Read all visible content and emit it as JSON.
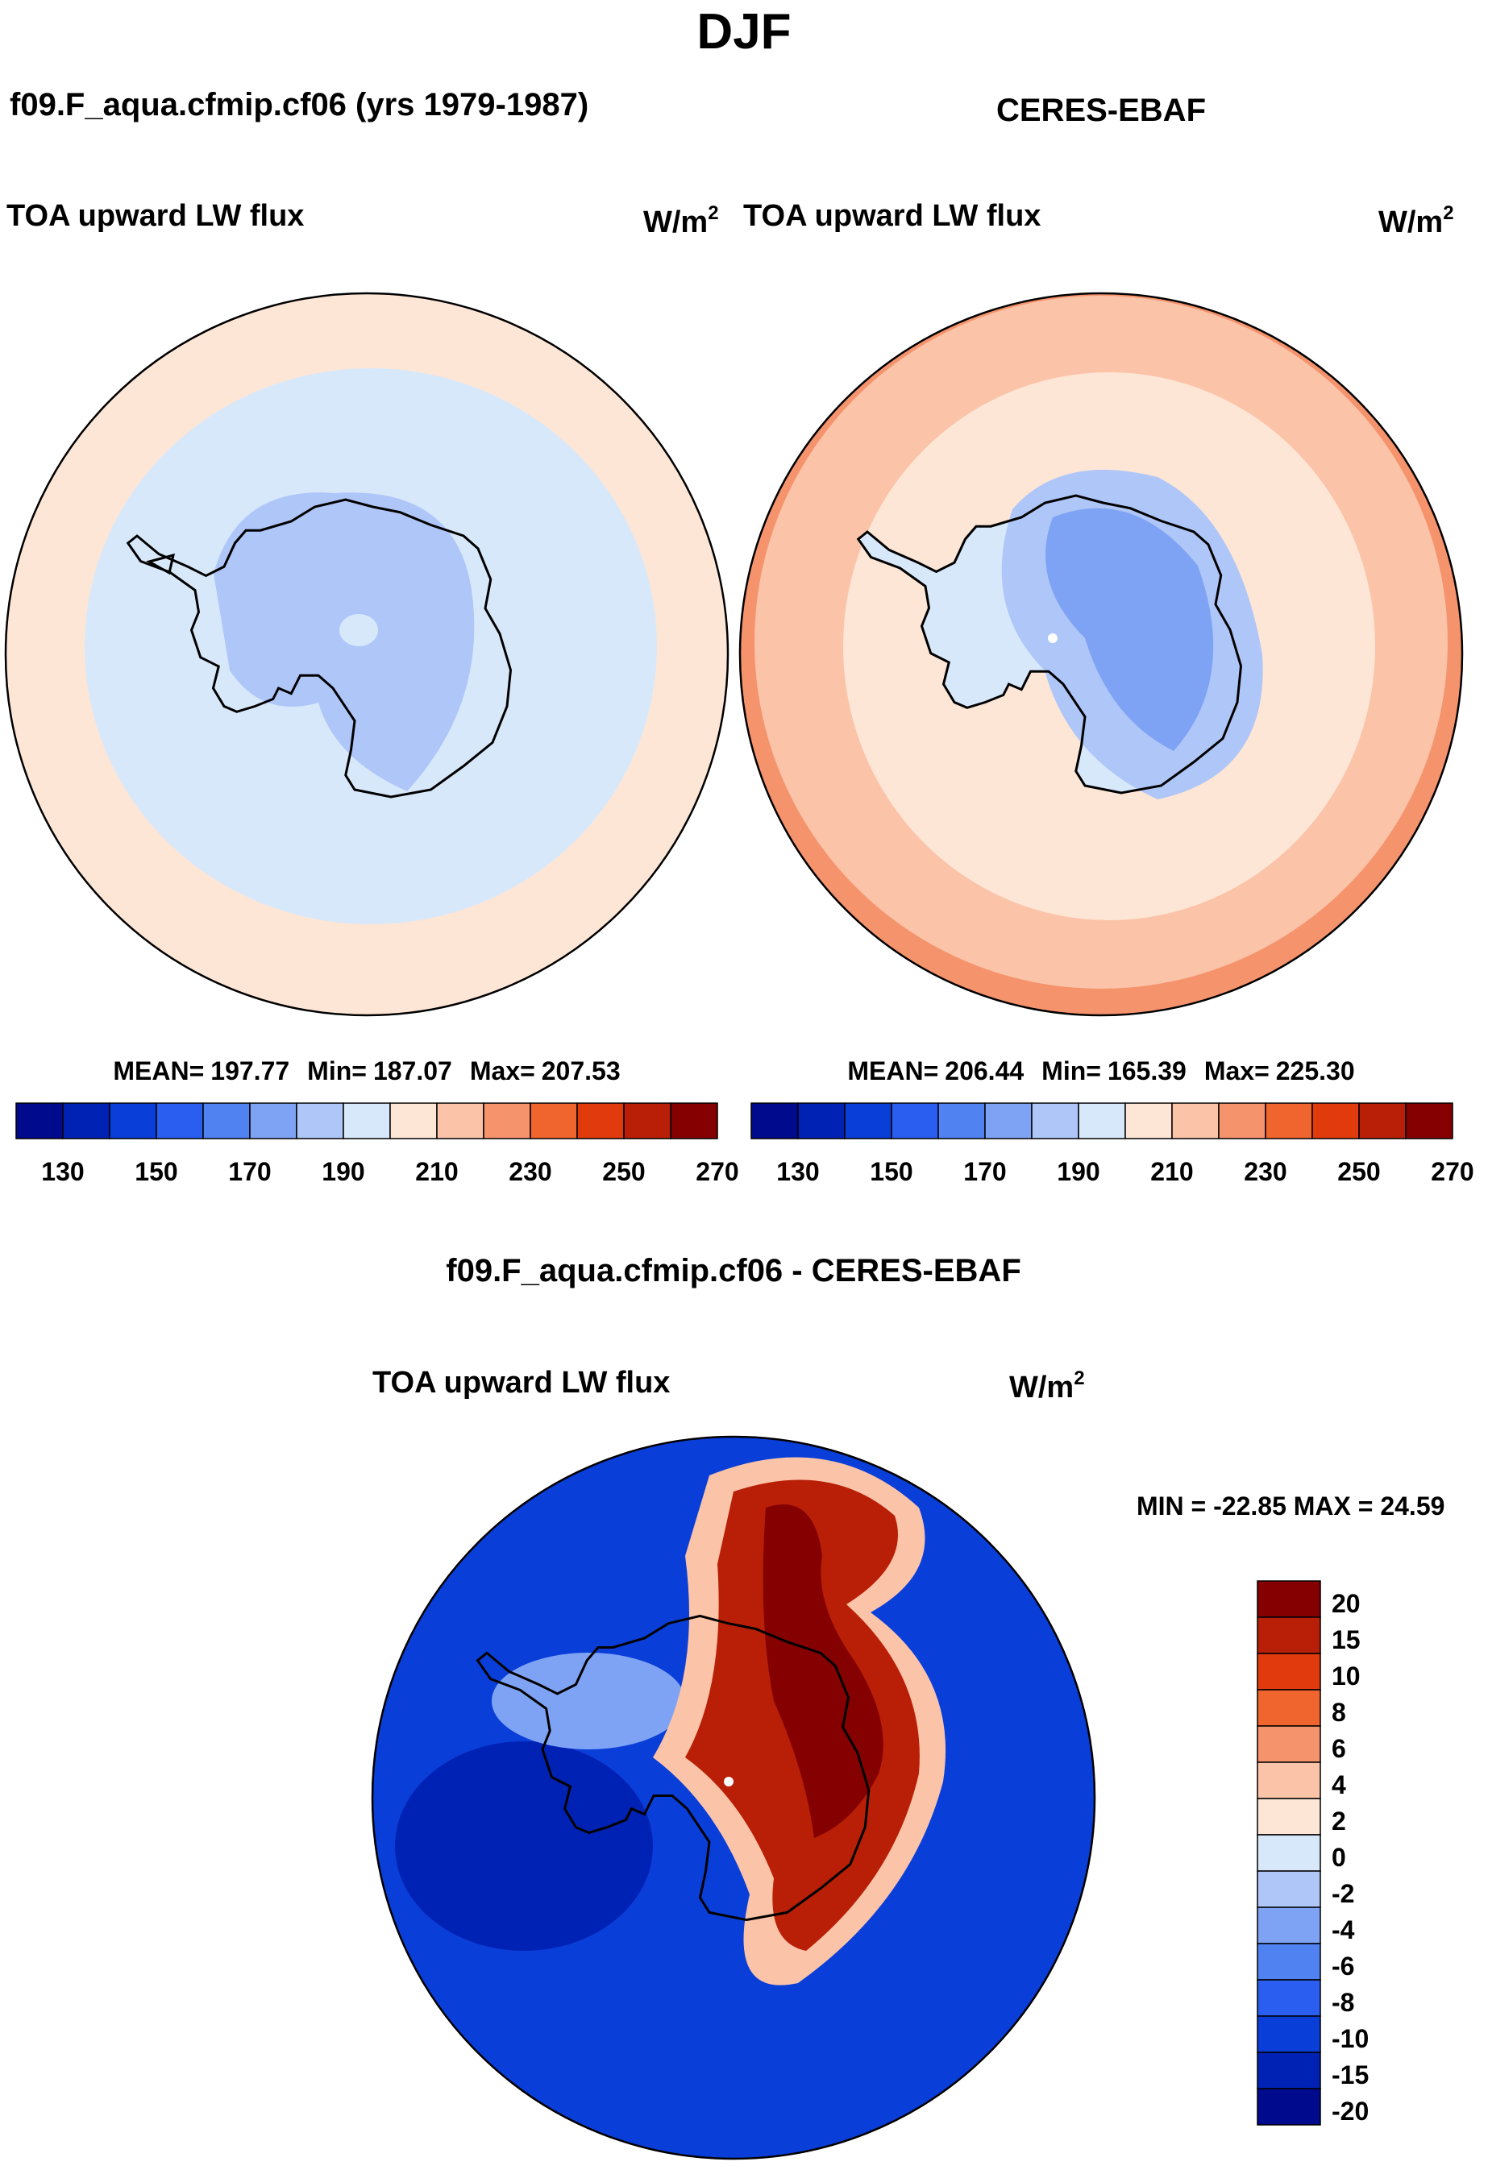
{
  "chart_data": [
    {
      "type": "heatmap",
      "title": "DJF",
      "panel_title": "f09.F_aqua.cfmip.cf06 (yrs 1979-1987)",
      "variable": "TOA upward LW flux",
      "units_base": "W/m",
      "units_exp": "2",
      "map": "south-polar stereographic",
      "stats": {
        "mean": "197.77",
        "min": "187.07",
        "max": "207.53",
        "mean_label": "MEAN=",
        "min_label": "Min=",
        "max_label": "Max="
      },
      "fields": {
        "ocean_outer": 205,
        "sea_ice_ring": 195,
        "ice_sheet": 188,
        "plateau_core": 192
      },
      "colorbar": {
        "orientation": "horizontal",
        "levels": [
          130,
          140,
          150,
          160,
          170,
          180,
          190,
          200,
          210,
          220,
          230,
          240,
          250,
          260,
          270
        ],
        "tick_labels": [
          "130",
          "150",
          "170",
          "190",
          "210",
          "230",
          "250",
          "270"
        ],
        "colors": [
          "#000a8c",
          "#0022b4",
          "#0a3ed8",
          "#2a5ef0",
          "#5082f2",
          "#7fa3f4",
          "#afc6f8",
          "#d8e8fb",
          "#fde6d6",
          "#fbc3a8",
          "#f5936c",
          "#f0642e",
          "#e13a0c",
          "#b81f06",
          "#850000"
        ]
      }
    },
    {
      "type": "heatmap",
      "panel_title": "CERES-EBAF",
      "variable": "TOA upward LW flux",
      "units_base": "W/m",
      "units_exp": "2",
      "map": "south-polar stereographic",
      "stats": {
        "mean": "206.44",
        "min": "165.39",
        "max": "225.30",
        "mean_label": "MEAN=",
        "min_label": "Min=",
        "max_label": "Max="
      },
      "fields": {
        "ocean_far": 220,
        "ocean_outer": 215,
        "sea_ice_ring": 205,
        "coast": 195,
        "ice_sheet": 185,
        "plateau": 178,
        "plateau_core": 170
      },
      "colorbar": {
        "orientation": "horizontal",
        "levels": [
          130,
          140,
          150,
          160,
          170,
          180,
          190,
          200,
          210,
          220,
          230,
          240,
          250,
          260,
          270
        ],
        "tick_labels": [
          "130",
          "150",
          "170",
          "190",
          "210",
          "230",
          "250",
          "270"
        ],
        "colors": [
          "#000a8c",
          "#0022b4",
          "#0a3ed8",
          "#2a5ef0",
          "#5082f2",
          "#7fa3f4",
          "#afc6f8",
          "#d8e8fb",
          "#fde6d6",
          "#fbc3a8",
          "#f5936c",
          "#f0642e",
          "#e13a0c",
          "#b81f06",
          "#850000"
        ]
      }
    },
    {
      "type": "heatmap",
      "panel_title": "f09.F_aqua.cfmip.cf06 - CERES-EBAF",
      "variable": "TOA upward LW flux",
      "units_base": "W/m",
      "units_exp": "2",
      "map": "south-polar stereographic",
      "stats_text": "MIN = -22.85 MAX =  24.59",
      "fields": {
        "ocean": -12,
        "ross_weddell": -20,
        "west_coast": -6,
        "plateau_edge": 3,
        "plateau": 10,
        "plateau_core": 22
      },
      "colorbar": {
        "orientation": "vertical",
        "tick_labels": [
          "20",
          "15",
          "10",
          "8",
          "6",
          "4",
          "2",
          "0",
          "-2",
          "-4",
          "-6",
          "-8",
          "-10",
          "-15",
          "-20"
        ],
        "colors": [
          "#850000",
          "#b81f06",
          "#e13a0c",
          "#f0642e",
          "#f5936c",
          "#fbc3a8",
          "#fde6d6",
          "#d8e8fb",
          "#afc6f8",
          "#7fa3f4",
          "#5082f2",
          "#2a5ef0",
          "#0a3ed8",
          "#0022b4",
          "#000a8c"
        ]
      }
    }
  ]
}
